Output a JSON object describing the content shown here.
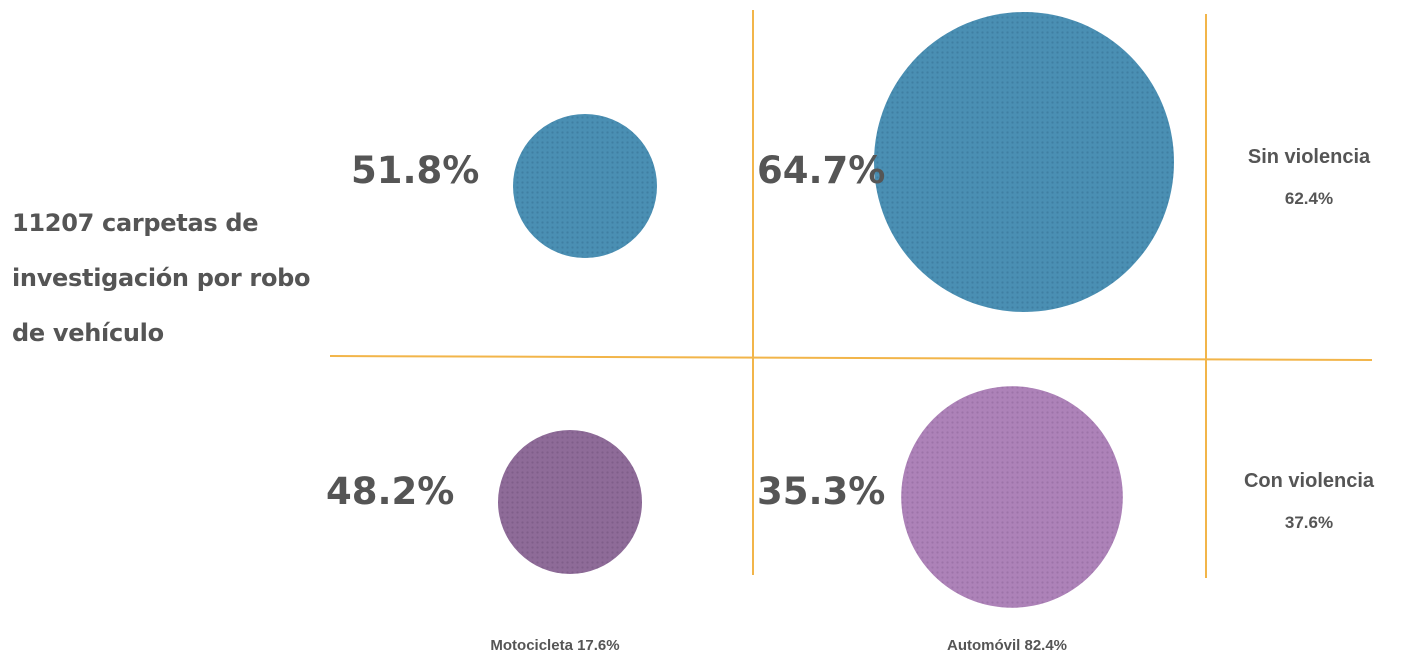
{
  "title_lines": [
    "11207 carpetas de",
    "investigación por robo",
    "de vehículo"
  ],
  "colors": {
    "sin_violencia": "#4a8fb3",
    "con_violencia_moto": "#8e6b98",
    "con_violencia_auto": "#ad82b8",
    "grid": "#f2b54a",
    "text": "#555555"
  },
  "chart_data": {
    "type": "bubble-matrix",
    "title": "11207 carpetas de investigación por robo de vehículo",
    "columns": [
      {
        "name": "Motocicleta",
        "share_label": "17.6%",
        "share": 17.6
      },
      {
        "name": "Automóvil",
        "share_label": "82.4%",
        "share": 82.4
      }
    ],
    "rows": [
      {
        "name": "Sin violencia",
        "share_label": "62.4%",
        "share": 62.4
      },
      {
        "name": "Con violencia",
        "share_label": "37.6%",
        "share": 37.6
      }
    ],
    "cells": [
      {
        "row": "Sin violencia",
        "column": "Motocicleta",
        "value": 51.8,
        "label": "51.8%"
      },
      {
        "row": "Sin violencia",
        "column": "Automóvil",
        "value": 64.7,
        "label": "64.7%"
      },
      {
        "row": "Con violencia",
        "column": "Motocicleta",
        "value": 48.2,
        "label": "48.2%"
      },
      {
        "row": "Con violencia",
        "column": "Automóvil",
        "value": 35.3,
        "label": "35.3%"
      }
    ],
    "column_labels": [
      "Motocicleta 17.6%",
      "Automóvil 82.4%"
    ],
    "row_labels": [
      {
        "name": "Sin violencia",
        "value": "62.4%"
      },
      {
        "name": "Con violencia",
        "value": "37.6%"
      }
    ]
  }
}
